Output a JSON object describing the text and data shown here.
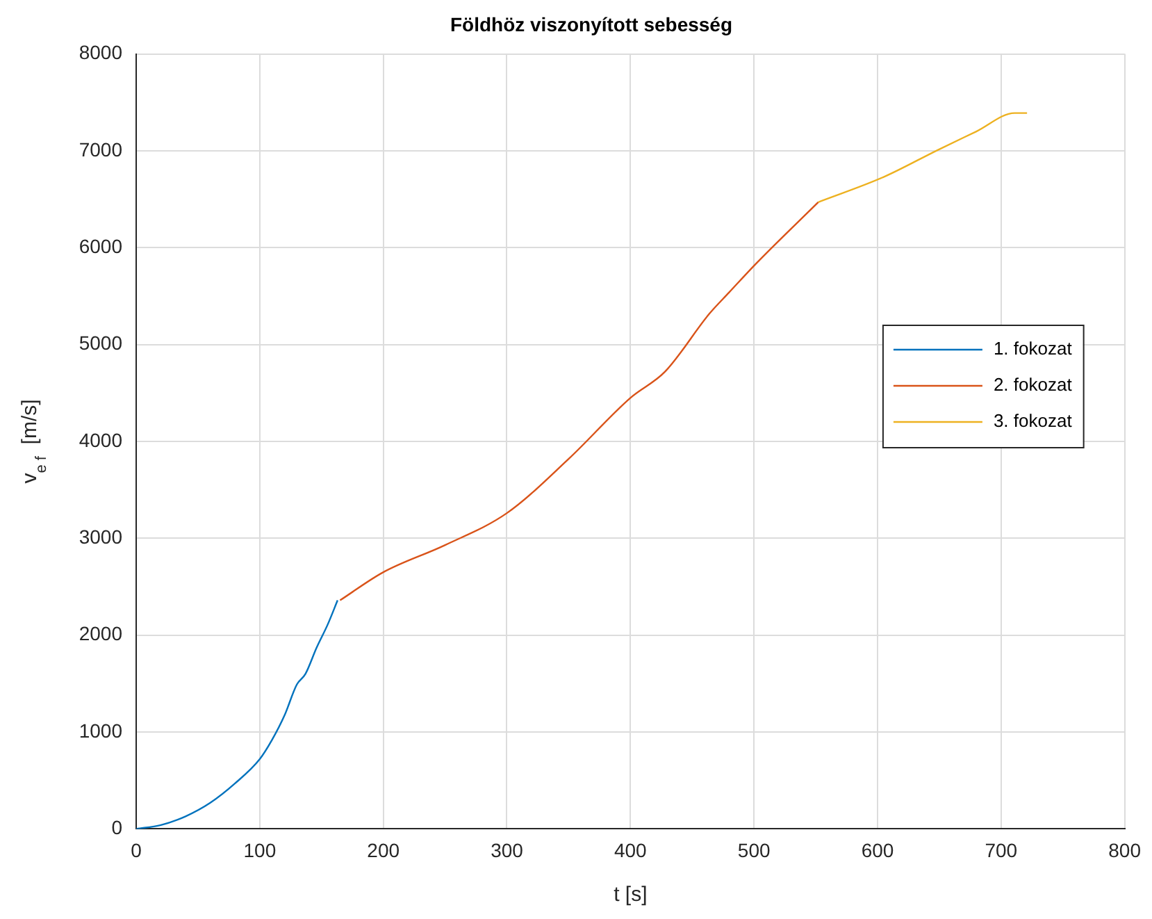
{
  "chart_data": {
    "type": "line",
    "title": "Földhöz viszonyított sebesség",
    "xlabel": "t [s]",
    "ylabel": "v$_{e f}$  [m/s]",
    "xlim": [
      0,
      800
    ],
    "xticks": [
      0,
      100,
      200,
      300,
      400,
      500,
      600,
      700,
      800
    ],
    "ylim": [
      0,
      8000
    ],
    "yticks": [
      0,
      1000,
      2000,
      3000,
      4000,
      5000,
      6000,
      7000,
      8000
    ],
    "grid": true,
    "legend": "right",
    "marker": "none",
    "line_style": "solid",
    "series": [
      {
        "name": "1. fokozat",
        "color": "#0072bd",
        "x": [
          0,
          20,
          40,
          60,
          80,
          100,
          110,
          120,
          130,
          137,
          146,
          155,
          163
        ],
        "values": [
          0,
          40,
          130,
          270,
          470,
          720,
          920,
          1170,
          1490,
          1600,
          1870,
          2110,
          2360
        ]
      },
      {
        "name": "2. fokozat",
        "color": "#d95319",
        "x": [
          165,
          200,
          250,
          300,
          350,
          400,
          428,
          464,
          480,
          502,
          552
        ],
        "values": [
          2360,
          2650,
          2930,
          3260,
          3820,
          4450,
          4720,
          5320,
          5540,
          5840,
          6470
        ]
      },
      {
        "name": "3. fokozat",
        "color": "#edb120",
        "x": [
          552,
          605,
          649,
          680,
          711,
          721
        ],
        "values": [
          6470,
          6730,
          7010,
          7200,
          7390,
          7390
        ]
      }
    ]
  }
}
